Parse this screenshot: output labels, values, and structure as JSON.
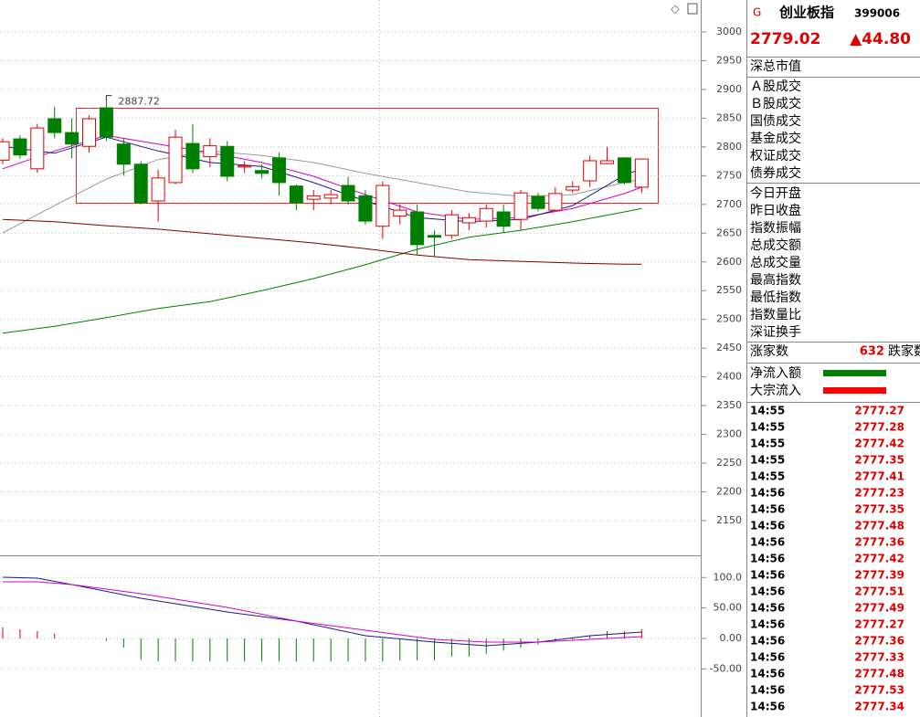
{
  "main_chart": {
    "type": "candlestick",
    "xlim": [
      -0.16,
      40.42
    ],
    "ylim": [
      2089.6,
      3055.6
    ],
    "yticks": [
      3000,
      2950,
      2900,
      2850,
      2800,
      2750,
      2700,
      2650,
      2600,
      2550,
      2500,
      2450,
      2400,
      2350,
      2300,
      2250,
      2200,
      2150
    ],
    "grid": true,
    "up_color": "#e00000",
    "down_color": "#008000",
    "candles": {
      "open": [
        2777,
        2814,
        2762,
        2849,
        2825,
        2801,
        2868,
        2805,
        2770,
        2706,
        2738,
        2806,
        2783,
        2801,
        2765,
        2759,
        2781,
        2732,
        2709,
        2711,
        2733,
        2715,
        2662,
        2680,
        2687,
        2646,
        2646,
        2668,
        2671,
        2687,
        2674,
        2714,
        2690,
        2725,
        2741,
        2771,
        2781,
        2730
      ],
      "high": [
        2815,
        2820,
        2840,
        2870,
        2850,
        2855,
        2887.72,
        2815,
        2775,
        2760,
        2830,
        2840,
        2815,
        2810,
        2775,
        2770,
        2790,
        2735,
        2725,
        2725,
        2748,
        2725,
        2740,
        2700,
        2700,
        2655,
        2690,
        2685,
        2700,
        2700,
        2725,
        2720,
        2730,
        2740,
        2785,
        2800,
        2781,
        2780
      ],
      "low": [
        2770,
        2780,
        2755,
        2815,
        2780,
        2790,
        2810,
        2750,
        2700,
        2670,
        2735,
        2755,
        2765,
        2740,
        2755,
        2745,
        2715,
        2690,
        2690,
        2700,
        2700,
        2665,
        2640,
        2665,
        2612,
        2610,
        2640,
        2655,
        2660,
        2650,
        2655,
        2688,
        2688,
        2720,
        2730,
        2770,
        2735,
        2720
      ],
      "close": [
        2809,
        2786,
        2833,
        2825,
        2805,
        2849,
        2817,
        2770,
        2703,
        2746,
        2817,
        2762,
        2802,
        2749,
        2767,
        2754,
        2738,
        2703,
        2715,
        2717,
        2706,
        2671,
        2733,
        2690,
        2630,
        2643,
        2682,
        2677,
        2693,
        2662,
        2720,
        2693,
        2719,
        2731,
        2776,
        2776,
        2738,
        2779.02
      ]
    },
    "moving_averages": [
      {
        "color": "#999999",
        "x": [
          0,
          3,
          6,
          9,
          12,
          15,
          18,
          21,
          24,
          27,
          30,
          33,
          36,
          37
        ],
        "values": [
          2650.5,
          2698,
          2744,
          2778,
          2793,
          2785,
          2773,
          2754,
          2738,
          2722,
          2714,
          2717,
          2738,
          2744
        ]
      },
      {
        "color": "#008000",
        "x": [
          0,
          3,
          6,
          9,
          12,
          15,
          18,
          21,
          24,
          27,
          30,
          33,
          36,
          37
        ],
        "values": [
          2476,
          2488,
          2503,
          2519,
          2531,
          2550,
          2571,
          2595,
          2622,
          2643,
          2655,
          2670,
          2687,
          2693
        ]
      },
      {
        "color": "#800000",
        "x": [
          0,
          3,
          6,
          9,
          12,
          15,
          18,
          21,
          24,
          27,
          30,
          33,
          36,
          37
        ],
        "values": [
          2674,
          2670,
          2663,
          2657,
          2649,
          2641,
          2633,
          2623,
          2612,
          2604,
          2601,
          2598,
          2596,
          2596
        ]
      },
      {
        "color": "#d000d0",
        "x": [
          0,
          3,
          6,
          9,
          12,
          15,
          18,
          21,
          24,
          27,
          30,
          33,
          36,
          37
        ],
        "values": [
          2762,
          2793,
          2820,
          2805,
          2790,
          2773,
          2749,
          2717,
          2687,
          2674,
          2677,
          2693,
          2719,
          2730
        ]
      },
      {
        "color": "#1a1a80",
        "x": [
          0,
          3,
          6,
          9,
          12,
          15,
          18,
          21,
          24,
          27,
          30,
          33,
          36,
          37
        ],
        "values": [
          2801,
          2789,
          2817,
          2793,
          2773,
          2766,
          2738,
          2706,
          2677,
          2670,
          2674,
          2698,
          2751,
          2762
        ]
      }
    ],
    "annotation": 2887.72
  },
  "indicator_chart": {
    "type": "macd",
    "xlim": [
      -0.16,
      40.42
    ],
    "ylim": [
      -128.9,
      136.4
    ],
    "yticks": [
      {
        "value": 100,
        "label": "100.0"
      },
      {
        "value": 50,
        "label": "50.00"
      },
      {
        "value": 0,
        "label": "0.00"
      },
      {
        "value": -50,
        "label": "-50.00"
      }
    ],
    "grid": true,
    "lines": [
      {
        "color": "#1a1a80",
        "x": [
          0,
          2,
          4,
          8,
          13,
          17,
          21,
          25,
          28,
          31,
          34,
          37
        ],
        "values": [
          100.4,
          99,
          88.4,
          66,
          43.5,
          28.5,
          4.5,
          -6,
          -12,
          -6,
          4.5,
          10.5
        ]
      },
      {
        "color": "#d000d0",
        "x": [
          0,
          2,
          4,
          8,
          13,
          17,
          21,
          25,
          28,
          31,
          34,
          37
        ],
        "values": [
          93,
          93,
          88.4,
          73.5,
          51,
          28.5,
          13.5,
          -1.5,
          -6,
          -6,
          -1.5,
          3
        ]
      }
    ],
    "bars": [
      18,
      15,
      12,
      8,
      0,
      0,
      -4,
      -15,
      -35,
      -38,
      -38,
      -38,
      -38,
      -38,
      -38,
      -38,
      -38,
      -38,
      -38,
      -38,
      -38,
      -38,
      -38,
      -36,
      -36,
      -36,
      -30,
      -30,
      -25,
      -20,
      -15,
      -10,
      -5,
      -2,
      5,
      12,
      12,
      15
    ],
    "up_color": "#e00000",
    "down_color": "#008000"
  },
  "quote_panel": {
    "market": "G",
    "name": "创业板指",
    "code": "399006",
    "price": 2779.02,
    "change": "▲44.80",
    "labels_a": [
      "深总市值"
    ],
    "labels_b": [
      "Ａ股成交",
      "Ｂ股成交",
      "国债成交",
      "基金成交",
      "权证成交",
      "债券成交"
    ],
    "labels_c": [
      "今日开盘",
      "昨日收盘",
      "指数振幅",
      "总成交额",
      "总成交量",
      "最高指数",
      "最低指数",
      "指数量比",
      "深证换手"
    ],
    "advance_label": "涨家数",
    "advance_count": 632,
    "decline_label": "跌家数",
    "flows": [
      {
        "label": "净流入额",
        "color": "#008000"
      },
      {
        "label": "大宗流入",
        "color": "#ff0000"
      }
    ],
    "ticks": [
      [
        "14:55",
        "2777.27"
      ],
      [
        "14:55",
        "2777.28"
      ],
      [
        "14:55",
        "2777.42"
      ],
      [
        "14:55",
        "2777.35"
      ],
      [
        "14:55",
        "2777.41"
      ],
      [
        "14:56",
        "2777.23"
      ],
      [
        "14:56",
        "2777.35"
      ],
      [
        "14:56",
        "2777.48"
      ],
      [
        "14:56",
        "2777.36"
      ],
      [
        "14:56",
        "2777.42"
      ],
      [
        "14:56",
        "2777.39"
      ],
      [
        "14:56",
        "2777.51"
      ],
      [
        "14:56",
        "2777.49"
      ],
      [
        "14:56",
        "2777.27"
      ],
      [
        "14:56",
        "2777.36"
      ],
      [
        "14:56",
        "2777.33"
      ],
      [
        "14:56",
        "2777.48"
      ],
      [
        "14:56",
        "2777.53"
      ],
      [
        "14:56",
        "2777.34"
      ]
    ]
  }
}
